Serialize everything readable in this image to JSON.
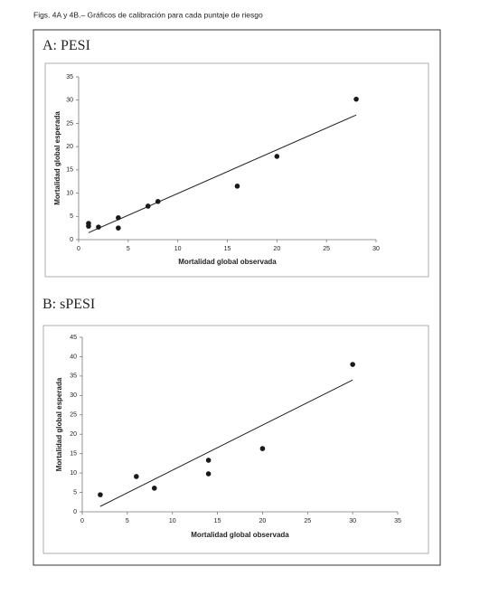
{
  "caption": "Figs. 4A y 4B.– Gráficos de calibración para cada puntaje de riesgo",
  "chart_data": [
    {
      "type": "scatter",
      "title": "A: PESI",
      "x_label": "Mortalidad global observada",
      "y_label": "Mortalidad global esperada",
      "x": [
        1,
        1,
        2,
        4,
        4,
        7,
        8,
        16,
        20,
        28
      ],
      "values": [
        3.5,
        2.9,
        2.7,
        4.7,
        2.5,
        7.2,
        8.2,
        11.5,
        17.9,
        30.2
      ],
      "color": "#1a1a1a",
      "trendline": {
        "x": [
          1,
          28
        ],
        "y": [
          1.5,
          26.8
        ]
      },
      "xlim": [
        0,
        30
      ],
      "xticks": [
        0,
        5,
        10,
        15,
        20,
        25,
        30
      ],
      "ylim": [
        0,
        35
      ],
      "yticks": [
        0,
        5,
        10,
        15,
        20,
        25,
        30,
        35
      ]
    },
    {
      "type": "scatter",
      "title": "B: sPESI",
      "x_label": "Mortalidad global observada",
      "y_label": "Mortalidad  global esperada",
      "x": [
        2,
        6,
        8,
        14,
        14,
        20,
        30
      ],
      "values": [
        4.4,
        9.1,
        6.1,
        13.3,
        9.8,
        16.3,
        38
      ],
      "color": "#1a1a1a",
      "trendline": {
        "x": [
          2,
          30
        ],
        "y": [
          1.4,
          34
        ]
      },
      "xlim": [
        0,
        35
      ],
      "xticks": [
        0,
        5,
        10,
        15,
        20,
        25,
        30,
        35
      ],
      "ylim": [
        0,
        45
      ],
      "yticks": [
        0,
        5,
        10,
        15,
        20,
        25,
        30,
        35,
        40,
        45
      ]
    }
  ]
}
